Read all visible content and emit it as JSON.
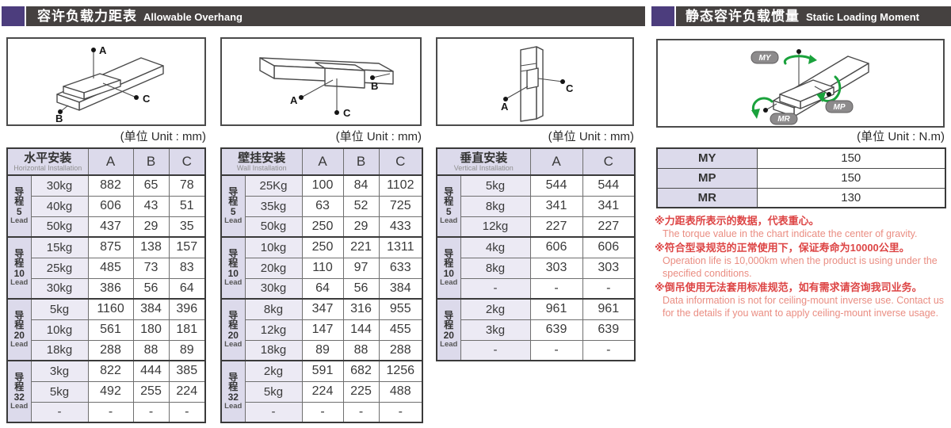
{
  "section_headers": {
    "overhang": {
      "cn": "容许负载力距表",
      "en": "Allowable Overhang"
    },
    "moment": {
      "cn": "静态容许负载惯量",
      "en": "Static Loading Moment"
    }
  },
  "unit_labels": {
    "mm": "(单位 Unit : mm)",
    "nm": "(单位 Unit : N.m)"
  },
  "diagram_labels": {
    "horizontal": {
      "a": "A",
      "b": "B",
      "c": "C"
    },
    "wall": {
      "a": "A",
      "b": "B",
      "c": "C"
    },
    "vertical": {
      "a": "A",
      "c": "C"
    },
    "moment": {
      "my": "MY",
      "mp": "MP",
      "mr": "MR"
    }
  },
  "overhang_tables": [
    {
      "id": "horizontal",
      "title_cn": "水平安装",
      "title_en": "Horizontal Installation",
      "columns": [
        "A",
        "B",
        "C"
      ],
      "groups": [
        {
          "lead_cn": "导程",
          "lead_num": "5",
          "lead_en": "Lead",
          "rows": [
            {
              "load": "30kg",
              "values": [
                "882",
                "65",
                "78"
              ]
            },
            {
              "load": "40kg",
              "values": [
                "606",
                "43",
                "51"
              ]
            },
            {
              "load": "50kg",
              "values": [
                "437",
                "29",
                "35"
              ]
            }
          ]
        },
        {
          "lead_cn": "导程",
          "lead_num": "10",
          "lead_en": "Lead",
          "rows": [
            {
              "load": "15kg",
              "values": [
                "875",
                "138",
                "157"
              ]
            },
            {
              "load": "25kg",
              "values": [
                "485",
                "73",
                "83"
              ]
            },
            {
              "load": "30kg",
              "values": [
                "386",
                "56",
                "64"
              ]
            }
          ]
        },
        {
          "lead_cn": "导程",
          "lead_num": "20",
          "lead_en": "Lead",
          "rows": [
            {
              "load": "5kg",
              "values": [
                "1160",
                "384",
                "396"
              ]
            },
            {
              "load": "10kg",
              "values": [
                "561",
                "180",
                "181"
              ]
            },
            {
              "load": "18kg",
              "values": [
                "288",
                "88",
                "89"
              ]
            }
          ]
        },
        {
          "lead_cn": "导程",
          "lead_num": "32",
          "lead_en": "Lead",
          "rows": [
            {
              "load": "3kg",
              "values": [
                "822",
                "444",
                "385"
              ]
            },
            {
              "load": "5kg",
              "values": [
                "492",
                "255",
                "224"
              ]
            },
            {
              "load": "-",
              "values": [
                "-",
                "-",
                "-"
              ]
            }
          ]
        }
      ]
    },
    {
      "id": "wall",
      "title_cn": "壁挂安装",
      "title_en": "Wall Installation",
      "columns": [
        "A",
        "B",
        "C"
      ],
      "groups": [
        {
          "lead_cn": "导程",
          "lead_num": "5",
          "lead_en": "Lead",
          "rows": [
            {
              "load": "25Kg",
              "values": [
                "100",
                "84",
                "1102"
              ]
            },
            {
              "load": "35kg",
              "values": [
                "63",
                "52",
                "725"
              ]
            },
            {
              "load": "50kg",
              "values": [
                "250",
                "29",
                "433"
              ]
            }
          ]
        },
        {
          "lead_cn": "导程",
          "lead_num": "10",
          "lead_en": "Lead",
          "rows": [
            {
              "load": "10kg",
              "values": [
                "250",
                "221",
                "1311"
              ]
            },
            {
              "load": "20kg",
              "values": [
                "110",
                "97",
                "633"
              ]
            },
            {
              "load": "30kg",
              "values": [
                "64",
                "56",
                "384"
              ]
            }
          ]
        },
        {
          "lead_cn": "导程",
          "lead_num": "20",
          "lead_en": "Lead",
          "rows": [
            {
              "load": "8kg",
              "values": [
                "347",
                "316",
                "955"
              ]
            },
            {
              "load": "12kg",
              "values": [
                "147",
                "144",
                "455"
              ]
            },
            {
              "load": "18kg",
              "values": [
                "89",
                "88",
                "288"
              ]
            }
          ]
        },
        {
          "lead_cn": "导程",
          "lead_num": "32",
          "lead_en": "Lead",
          "rows": [
            {
              "load": "2kg",
              "values": [
                "591",
                "682",
                "1256"
              ]
            },
            {
              "load": "5kg",
              "values": [
                "224",
                "225",
                "488"
              ]
            },
            {
              "load": "-",
              "values": [
                "-",
                "-",
                "-"
              ]
            }
          ]
        }
      ]
    },
    {
      "id": "vertical",
      "title_cn": "垂直安装",
      "title_en": "Vertical Installation",
      "columns": [
        "A",
        "C"
      ],
      "groups": [
        {
          "lead_cn": "导程",
          "lead_num": "5",
          "lead_en": "Lead",
          "rows": [
            {
              "load": "5kg",
              "values": [
                "544",
                "544"
              ]
            },
            {
              "load": "8kg",
              "values": [
                "341",
                "341"
              ]
            },
            {
              "load": "12kg",
              "values": [
                "227",
                "227"
              ]
            }
          ]
        },
        {
          "lead_cn": "导程",
          "lead_num": "10",
          "lead_en": "Lead",
          "rows": [
            {
              "load": "4kg",
              "values": [
                "606",
                "606"
              ]
            },
            {
              "load": "8kg",
              "values": [
                "303",
                "303"
              ]
            },
            {
              "load": "-",
              "values": [
                "-",
                "-"
              ]
            }
          ]
        },
        {
          "lead_cn": "导程",
          "lead_num": "20",
          "lead_en": "Lead",
          "rows": [
            {
              "load": "2kg",
              "values": [
                "961",
                "961"
              ]
            },
            {
              "load": "3kg",
              "values": [
                "639",
                "639"
              ]
            },
            {
              "load": "-",
              "values": [
                "-",
                "-"
              ]
            }
          ]
        }
      ]
    }
  ],
  "moment_table": {
    "rows": [
      {
        "label": "MY",
        "value": "150"
      },
      {
        "label": "MP",
        "value": "150"
      },
      {
        "label": "MR",
        "value": "130"
      }
    ]
  },
  "notes": [
    {
      "cn": "※力距表所表示的数据，代表重心。",
      "en": "The torque value in the chart indicate the center of gravity."
    },
    {
      "cn": "※符合型录规范的正常使用下，保证寿命为10000公里。",
      "en": "Operation life is 10,000km when the product is using under the specified conditions."
    },
    {
      "cn": "※倒吊使用无法套用标准规范，如有需求请咨询我司业务。",
      "en": "Data information is not for ceiling-mount inverse use. Contact us for the details if you want to apply ceiling-mount inverse usage."
    }
  ],
  "colors": {
    "accent_purple": "#4c3d7d",
    "bar_dark": "#454140",
    "table_lavender": "#dcdaeb",
    "table_lavender_light": "#eceaf4",
    "note_red_cn": "#dd4545",
    "note_red_en": "#ea8d82",
    "arrow_green": "#1aa23c"
  }
}
